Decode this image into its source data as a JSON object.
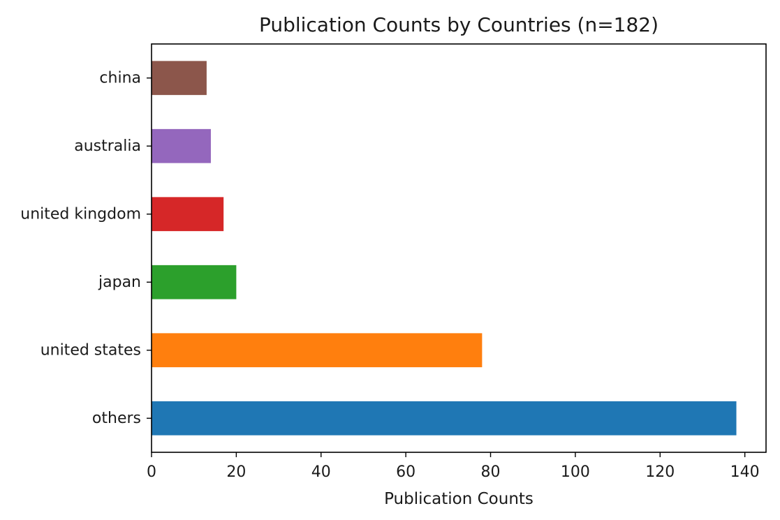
{
  "chart_data": {
    "type": "bar",
    "orientation": "horizontal",
    "title": "Publication Counts by Countries (n=182)",
    "xlabel": "Publication Counts",
    "ylabel": "",
    "xlim": [
      0,
      145
    ],
    "xticks": [
      0,
      20,
      40,
      60,
      80,
      100,
      120,
      140
    ],
    "grid": false,
    "categories": [
      "others",
      "united states",
      "japan",
      "united kingdom",
      "australia",
      "china"
    ],
    "values": [
      138,
      78,
      20,
      17,
      14,
      13
    ],
    "colors": [
      "#1f77b4",
      "#ff7f0e",
      "#2ca02c",
      "#d62728",
      "#9467bd",
      "#8c564b"
    ]
  }
}
